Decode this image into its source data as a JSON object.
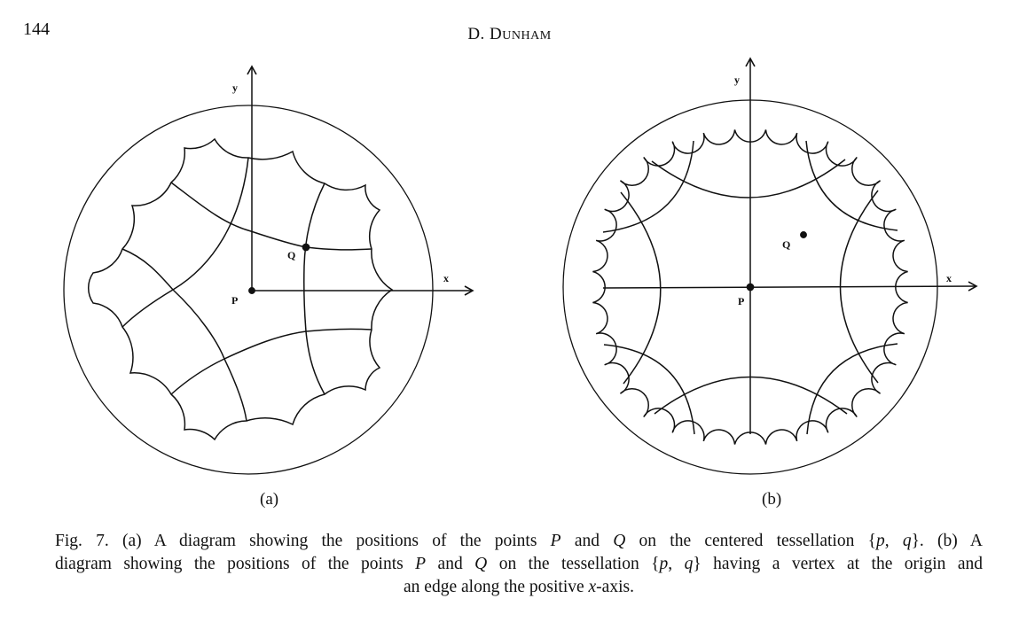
{
  "header": {
    "page_number": "144",
    "author_initial": "D. D",
    "author_rest": "UNHAM"
  },
  "figure_a": {
    "label": "(a)",
    "axis_x": "x",
    "axis_y": "y",
    "point_p": "P",
    "point_q": "Q"
  },
  "figure_b": {
    "label": "(b)",
    "axis_x": "x",
    "axis_y": "y",
    "point_p": "P",
    "point_q": "Q"
  },
  "caption": {
    "lines": [
      [
        {
          "text": "Fig. 7. (a) A diagram showing the positions of the points ",
          "italic": false
        },
        {
          "text": "P",
          "italic": true
        },
        {
          "text": " and ",
          "italic": false
        },
        {
          "text": "Q",
          "italic": true
        },
        {
          "text": " on the centered tessellation {",
          "italic": false
        },
        {
          "text": "p",
          "italic": true
        },
        {
          "text": ", ",
          "italic": false
        },
        {
          "text": "q",
          "italic": true
        },
        {
          "text": "}. (b) A",
          "italic": false
        }
      ],
      [
        {
          "text": "diagram showing the positions of the points ",
          "italic": false
        },
        {
          "text": "P",
          "italic": true
        },
        {
          "text": " and ",
          "italic": false
        },
        {
          "text": "Q",
          "italic": true
        },
        {
          "text": " on the tessellation {",
          "italic": false
        },
        {
          "text": "p",
          "italic": true
        },
        {
          "text": ", ",
          "italic": false
        },
        {
          "text": "q",
          "italic": true
        },
        {
          "text": "} having a vertex at the origin and",
          "italic": false
        }
      ],
      [
        {
          "text": "an edge along the positive ",
          "italic": false
        },
        {
          "text": "x",
          "italic": true
        },
        {
          "text": "-axis.",
          "italic": false
        }
      ]
    ]
  }
}
